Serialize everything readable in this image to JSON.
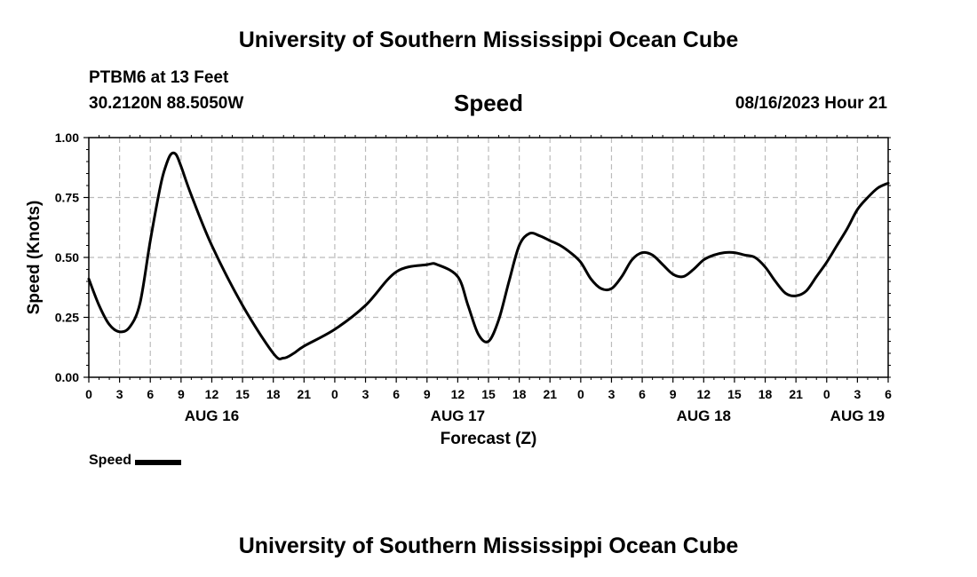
{
  "header": {
    "title": "University of Southern Mississippi Ocean Cube",
    "station": "PTBM6 at 13 Feet",
    "coordinates": "30.2120N  88.5050W",
    "metric": "Speed",
    "datetime": "08/16/2023 Hour 21"
  },
  "footer": {
    "title": "University of Southern Mississippi Ocean Cube"
  },
  "legend": {
    "label": "Speed"
  },
  "chart_data": {
    "type": "line",
    "title": "Speed",
    "xlabel": "Forecast (Z)",
    "ylabel": "Speed (Knots)",
    "xlim": [
      0,
      78
    ],
    "ylim": [
      0,
      1.0
    ],
    "grid": true,
    "x_unit": "hours from AUG 16 00Z",
    "y_ticks": [
      "0.00",
      "0.25",
      "0.50",
      "0.75",
      "1.00"
    ],
    "x_ticks": [
      "0",
      "3",
      "6",
      "9",
      "12",
      "15",
      "18",
      "21",
      "0",
      "3",
      "6",
      "9",
      "12",
      "15",
      "18",
      "21",
      "0",
      "3",
      "6",
      "9",
      "12",
      "15",
      "18",
      "21",
      "0",
      "3",
      "6"
    ],
    "date_labels": [
      {
        "hour": 12,
        "label": "AUG 16"
      },
      {
        "hour": 36,
        "label": "AUG 17"
      },
      {
        "hour": 60,
        "label": "AUG 18"
      },
      {
        "hour": 75,
        "label": "AUG 19"
      }
    ],
    "series": [
      {
        "name": "Speed",
        "color": "#000000",
        "x": [
          0,
          1,
          2,
          3,
          4,
          5,
          6,
          7,
          7.5,
          8,
          8.5,
          9,
          10,
          12,
          15,
          18,
          19,
          20,
          21,
          24,
          27,
          30,
          33,
          34,
          36,
          37,
          38,
          39,
          40,
          41,
          42,
          43,
          44,
          45,
          46,
          47,
          48,
          49,
          50,
          51,
          52,
          53,
          54,
          55,
          56,
          57,
          58,
          59,
          60,
          61,
          62,
          63,
          64,
          65,
          66,
          67,
          68,
          69,
          70,
          71,
          72,
          73,
          74,
          75,
          76,
          77,
          78
        ],
        "y": [
          0.41,
          0.3,
          0.22,
          0.19,
          0.21,
          0.31,
          0.57,
          0.8,
          0.88,
          0.93,
          0.93,
          0.88,
          0.76,
          0.55,
          0.3,
          0.1,
          0.08,
          0.1,
          0.13,
          0.2,
          0.3,
          0.44,
          0.47,
          0.47,
          0.42,
          0.3,
          0.18,
          0.15,
          0.24,
          0.4,
          0.55,
          0.6,
          0.59,
          0.57,
          0.55,
          0.52,
          0.48,
          0.41,
          0.37,
          0.37,
          0.42,
          0.49,
          0.52,
          0.51,
          0.47,
          0.43,
          0.42,
          0.45,
          0.49,
          0.51,
          0.52,
          0.52,
          0.51,
          0.5,
          0.46,
          0.4,
          0.35,
          0.34,
          0.36,
          0.42,
          0.48,
          0.55,
          0.62,
          0.7,
          0.75,
          0.79,
          0.81
        ]
      }
    ]
  }
}
